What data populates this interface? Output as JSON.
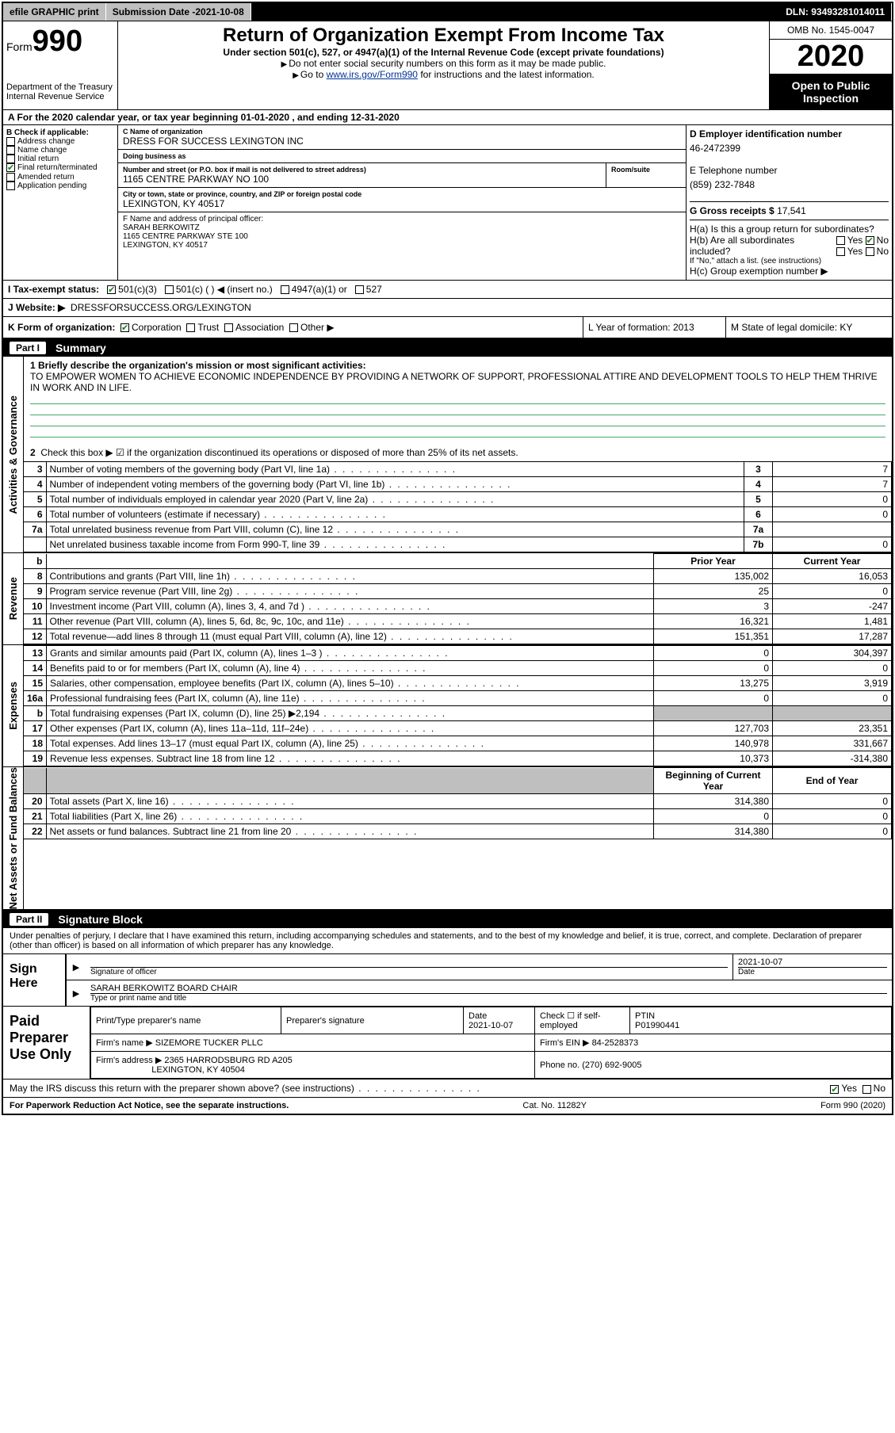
{
  "topbar": {
    "efile": "efile GRAPHIC print",
    "subdate_label": "Submission Date - ",
    "subdate": "2021-10-08",
    "dln": "DLN: 93493281014011"
  },
  "header": {
    "form_word": "Form",
    "form_num": "990",
    "dept": "Department of the Treasury\nInternal Revenue Service",
    "title": "Return of Organization Exempt From Income Tax",
    "sub": "Under section 501(c), 527, or 4947(a)(1) of the Internal Revenue Code (except private foundations)",
    "note1": "Do not enter social security numbers on this form as it may be made public.",
    "note2_pre": "Go to ",
    "note2_link": "www.irs.gov/Form990",
    "note2_post": " for instructions and the latest information.",
    "omb": "OMB No. 1545-0047",
    "year": "2020",
    "open": "Open to Public Inspection"
  },
  "rowA": "A For the 2020 calendar year, or tax year beginning 01-01-2020    , and ending 12-31-2020",
  "B": {
    "title": "B Check if applicable:",
    "items": [
      "Address change",
      "Name change",
      "Initial return",
      "Final return/terminated",
      "Amended return",
      "Application pending"
    ],
    "checked_idx": 3
  },
  "C": {
    "name_label": "C Name of organization",
    "name": "DRESS FOR SUCCESS LEXINGTON INC",
    "dba_label": "Doing business as",
    "dba": "",
    "street_label": "Number and street (or P.O. box if mail is not delivered to street address)",
    "room_label": "Room/suite",
    "street": "1165 CENTRE PARKWAY NO 100",
    "city_label": "City or town, state or province, country, and ZIP or foreign postal code",
    "city": "LEXINGTON, KY  40517",
    "F_label": "F  Name and address of principal officer:",
    "F_name": "SARAH BERKOWITZ",
    "F_addr1": "1165 CENTRE PARKWAY STE 100",
    "F_addr2": "LEXINGTON, KY  40517"
  },
  "D": {
    "ein_label": "D Employer identification number",
    "ein": "46-2472399",
    "tel_label": "E Telephone number",
    "tel": "(859) 232-7848",
    "gross_label": "G Gross receipts $ ",
    "gross": "17,541",
    "Ha": "H(a)  Is this a group return for subordinates?",
    "Hb": "H(b)  Are all subordinates included?",
    "Hb_note": "If \"No,\" attach a list. (see instructions)",
    "Hc": "H(c)  Group exemption number ▶"
  },
  "I": {
    "label": "I    Tax-exempt status:",
    "opts": [
      "501(c)(3)",
      "501(c) (   ) ◀ (insert no.)",
      "4947(a)(1) or",
      "527"
    ]
  },
  "J": {
    "label": "J   Website: ▶",
    "val": "DRESSFORSUCCESS.ORG/LEXINGTON"
  },
  "K": {
    "label": "K Form of organization:",
    "opts": [
      "Corporation",
      "Trust",
      "Association",
      "Other ▶"
    ],
    "L": "L Year of formation: 2013",
    "M": "M State of legal domicile: KY"
  },
  "part1": {
    "num": "Part I",
    "title": "Summary"
  },
  "mission": {
    "q": "1  Briefly describe the organization's mission or most significant activities:",
    "text": "TO EMPOWER WOMEN TO ACHIEVE ECONOMIC INDEPENDENCE BY PROVIDING A NETWORK OF SUPPORT, PROFESSIONAL ATTIRE AND DEVELOPMENT TOOLS TO HELP THEM THRIVE IN WORK AND IN LIFE."
  },
  "gov": {
    "line2": "Check this box ▶ ☑ if the organization discontinued its operations or disposed of more than 25% of its net assets.",
    "rows": [
      {
        "n": "3",
        "t": "Number of voting members of the governing body (Part VI, line 1a)",
        "box": "3",
        "v": "7"
      },
      {
        "n": "4",
        "t": "Number of independent voting members of the governing body (Part VI, line 1b)",
        "box": "4",
        "v": "7"
      },
      {
        "n": "5",
        "t": "Total number of individuals employed in calendar year 2020 (Part V, line 2a)",
        "box": "5",
        "v": "0"
      },
      {
        "n": "6",
        "t": "Total number of volunteers (estimate if necessary)",
        "box": "6",
        "v": "0"
      },
      {
        "n": "7a",
        "t": "Total unrelated business revenue from Part VIII, column (C), line 12",
        "box": "7a",
        "v": ""
      },
      {
        "n": "",
        "t": "Net unrelated business taxable income from Form 990-T, line 39",
        "box": "7b",
        "v": "0"
      }
    ]
  },
  "rev": {
    "hdr_prior": "Prior Year",
    "hdr_curr": "Current Year",
    "rows": [
      {
        "n": "8",
        "t": "Contributions and grants (Part VIII, line 1h)",
        "p": "135,002",
        "c": "16,053"
      },
      {
        "n": "9",
        "t": "Program service revenue (Part VIII, line 2g)",
        "p": "25",
        "c": "0"
      },
      {
        "n": "10",
        "t": "Investment income (Part VIII, column (A), lines 3, 4, and 7d )",
        "p": "3",
        "c": "-247"
      },
      {
        "n": "11",
        "t": "Other revenue (Part VIII, column (A), lines 5, 6d, 8c, 9c, 10c, and 11e)",
        "p": "16,321",
        "c": "1,481"
      },
      {
        "n": "12",
        "t": "Total revenue—add lines 8 through 11 (must equal Part VIII, column (A), line 12)",
        "p": "151,351",
        "c": "17,287"
      }
    ]
  },
  "exp": {
    "rows": [
      {
        "n": "13",
        "t": "Grants and similar amounts paid (Part IX, column (A), lines 1–3 )",
        "p": "0",
        "c": "304,397"
      },
      {
        "n": "14",
        "t": "Benefits paid to or for members (Part IX, column (A), line 4)",
        "p": "0",
        "c": "0"
      },
      {
        "n": "15",
        "t": "Salaries, other compensation, employee benefits (Part IX, column (A), lines 5–10)",
        "p": "13,275",
        "c": "3,919"
      },
      {
        "n": "16a",
        "t": "Professional fundraising fees (Part IX, column (A), line 11e)",
        "p": "0",
        "c": "0"
      },
      {
        "n": "b",
        "t": "Total fundraising expenses (Part IX, column (D), line 25) ▶2,194",
        "p": "",
        "c": "",
        "shade": true
      },
      {
        "n": "17",
        "t": "Other expenses (Part IX, column (A), lines 11a–11d, 11f–24e)",
        "p": "127,703",
        "c": "23,351"
      },
      {
        "n": "18",
        "t": "Total expenses. Add lines 13–17 (must equal Part IX, column (A), line 25)",
        "p": "140,978",
        "c": "331,667"
      },
      {
        "n": "19",
        "t": "Revenue less expenses. Subtract line 18 from line 12",
        "p": "10,373",
        "c": "-314,380"
      }
    ]
  },
  "net": {
    "hdr_beg": "Beginning of Current Year",
    "hdr_end": "End of Year",
    "rows": [
      {
        "n": "20",
        "t": "Total assets (Part X, line 16)",
        "p": "314,380",
        "c": "0"
      },
      {
        "n": "21",
        "t": "Total liabilities (Part X, line 26)",
        "p": "0",
        "c": "0"
      },
      {
        "n": "22",
        "t": "Net assets or fund balances. Subtract line 21 from line 20",
        "p": "314,380",
        "c": "0"
      }
    ]
  },
  "part2": {
    "num": "Part II",
    "title": "Signature Block"
  },
  "sig": {
    "decl": "Under penalties of perjury, I declare that I have examined this return, including accompanying schedules and statements, and to the best of my knowledge and belief, it is true, correct, and complete. Declaration of preparer (other than officer) is based on all information of which preparer has any knowledge.",
    "sign_here": "Sign Here",
    "sig_officer": "Signature of officer",
    "date": "2021-10-07",
    "date_label": "Date",
    "name": "SARAH BERKOWITZ  BOARD CHAIR",
    "name_label": "Type or print name and title"
  },
  "prep": {
    "title": "Paid Preparer Use Only",
    "cols": [
      "Print/Type preparer's name",
      "Preparer's signature",
      "Date",
      "",
      "PTIN"
    ],
    "date": "2021-10-07",
    "check_label": "Check ☐ if self-employed",
    "ptin": "P01990441",
    "firm_name_label": "Firm's name   ▶",
    "firm_name": "SIZEMORE TUCKER PLLC",
    "firm_ein_label": "Firm's EIN ▶",
    "firm_ein": "84-2528373",
    "firm_addr_label": "Firm's address ▶",
    "firm_addr1": "2365 HARRODSBURG RD A205",
    "firm_addr2": "LEXINGTON, KY  40504",
    "phone_label": "Phone no.",
    "phone": "(270) 692-9005"
  },
  "discuss": "May the IRS discuss this return with the preparer shown above? (see instructions)",
  "footer": {
    "left": "For Paperwork Reduction Act Notice, see the separate instructions.",
    "mid": "Cat. No. 11282Y",
    "right": "Form 990 (2020)"
  },
  "sides": {
    "gov": "Activities & Governance",
    "rev": "Revenue",
    "exp": "Expenses",
    "net": "Net Assets or Fund Balances"
  }
}
